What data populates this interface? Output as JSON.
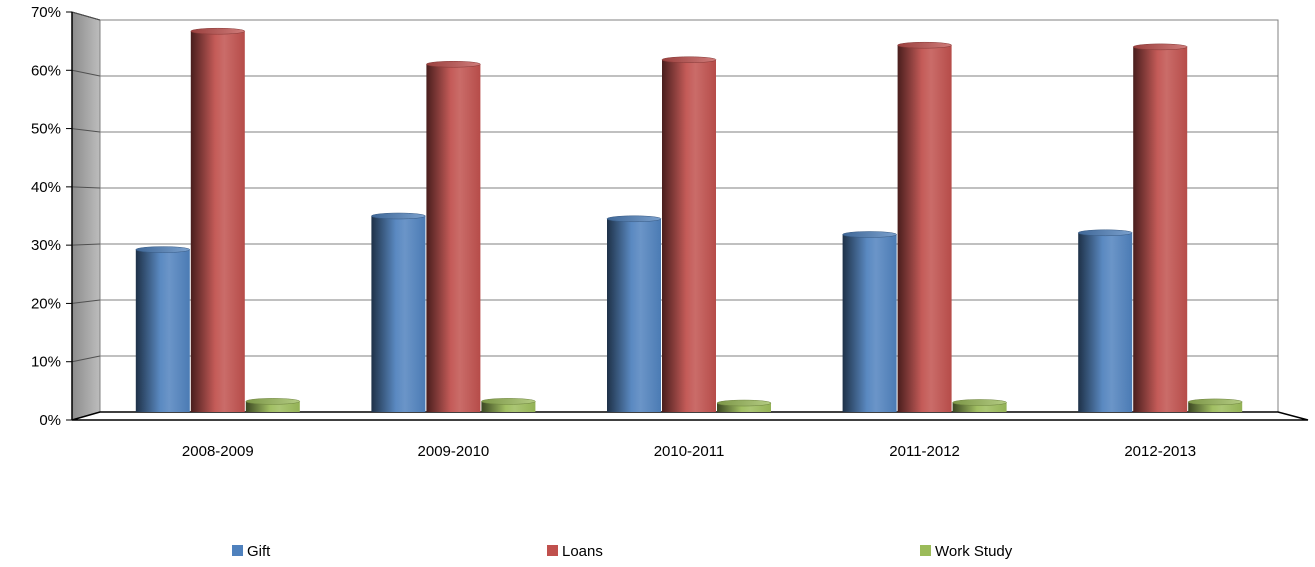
{
  "chart_data": {
    "type": "bar",
    "title": "",
    "xlabel": "",
    "ylabel": "",
    "categories": [
      "2008-2009",
      "2009-2010",
      "2010-2011",
      "2011-2012",
      "2012-2013"
    ],
    "series": [
      {
        "name": "Gift",
        "values": [
          0.29,
          0.35,
          0.345,
          0.317,
          0.32
        ],
        "color": "#4f81bd"
      },
      {
        "name": "Loans",
        "values": [
          0.68,
          0.621,
          0.629,
          0.655,
          0.652
        ],
        "color": "#c0504d"
      },
      {
        "name": "Work Study",
        "values": [
          0.019,
          0.019,
          0.016,
          0.017,
          0.018
        ],
        "color": "#9bbb59"
      }
    ],
    "ylim": [
      0,
      0.7
    ],
    "yticks": [
      0,
      0.1,
      0.2,
      0.3,
      0.4,
      0.5,
      0.6,
      0.7
    ],
    "ytick_labels": [
      "0%",
      "10%",
      "20%",
      "30%",
      "40%",
      "50%",
      "60%",
      "70%"
    ],
    "grid": true,
    "legend_position": "bottom",
    "style": "3d-column"
  }
}
